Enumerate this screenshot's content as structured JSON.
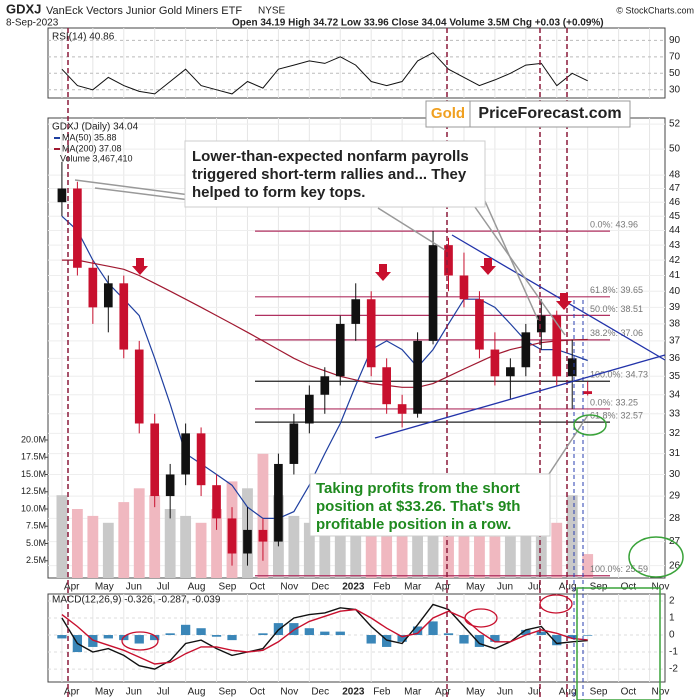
{
  "chart_data": {
    "type": "candlestick",
    "symbol": "GDXJ",
    "name": "VanEck Vectors Junior Gold Miners ETF",
    "exchange": "NYSE",
    "date": "8-Sep-2023",
    "quote": "Open 34.19 High 34.72 Low 33.96 Close 34.04 Volume 3.5M Chg +0.03 (+0.09%)",
    "source": "© StockCharts.com",
    "price_label": "GDXJ (Daily) 34.04",
    "volume_label": "Volume 3,467,410",
    "logo": [
      "Gold",
      "PriceForecast.com"
    ],
    "callout": [
      "Lower-than-expected nonfarm payrolls",
      "triggered short-term rallies and... They",
      "helped to form key tops."
    ],
    "profit_note": [
      "Taking profits from the short",
      "position at $33.26. That's 9th",
      "profitable position in a row."
    ],
    "log_scale": true,
    "up_color": "#111111",
    "down_color": "#c8102e",
    "xlim": [
      -0.45,
      19.5
    ],
    "xticks": [
      {
        "value": 0,
        "label": "Apr"
      },
      {
        "value": 1,
        "label": "May"
      },
      {
        "value": 2,
        "label": "Jun"
      },
      {
        "value": 3,
        "label": "Jul"
      },
      {
        "value": 4,
        "label": "Aug"
      },
      {
        "value": 5,
        "label": "Sep"
      },
      {
        "value": 6,
        "label": "Oct"
      },
      {
        "value": 7,
        "label": "Nov"
      },
      {
        "value": 8,
        "label": "Dec"
      },
      {
        "value": 9,
        "label": "2023"
      },
      {
        "value": 10,
        "label": "Feb"
      },
      {
        "value": 11,
        "label": "Mar"
      },
      {
        "value": 12,
        "label": "Apr"
      },
      {
        "value": 13,
        "label": "May"
      },
      {
        "value": 14,
        "label": "Jun"
      },
      {
        "value": 15,
        "label": "Jul"
      },
      {
        "value": 16,
        "label": "Aug"
      },
      {
        "value": 17,
        "label": "Sep"
      },
      {
        "value": 18,
        "label": "Oct"
      },
      {
        "value": 19,
        "label": "Nov"
      }
    ],
    "ylim": [
      25.5,
      52.5
    ],
    "yticks": [
      26,
      27,
      28,
      29,
      30,
      31,
      32,
      33,
      34,
      35,
      36,
      37,
      38,
      39,
      40,
      41,
      42,
      43,
      44,
      45,
      46,
      47,
      48,
      50,
      52
    ],
    "x": [
      0,
      0.5,
      1,
      1.5,
      2,
      2.5,
      3,
      3.5,
      4,
      4.5,
      5,
      5.5,
      6,
      6.5,
      7,
      7.5,
      8,
      8.5,
      9,
      9.5,
      10,
      10.5,
      11,
      11.5,
      12,
      12.5,
      13,
      13.5,
      14,
      14.5,
      15,
      15.5,
      16,
      16.5,
      17
    ],
    "open": [
      46,
      47,
      41.5,
      39,
      40.5,
      36.5,
      32.5,
      29,
      30,
      32,
      29.5,
      28,
      26.5,
      27.5,
      27,
      30.5,
      32.5,
      34,
      35,
      38,
      39.5,
      35.5,
      33.5,
      33,
      37,
      43,
      41,
      39.5,
      36.5,
      35,
      35.5,
      37.5,
      38.5,
      35,
      34.19
    ],
    "high": [
      49,
      47.5,
      42,
      41,
      41,
      37,
      33,
      30.5,
      32.5,
      32.3,
      30,
      28.5,
      28.5,
      28,
      31,
      33,
      34.5,
      35.5,
      38.5,
      40.5,
      40,
      36,
      34,
      37.5,
      43.96,
      43.5,
      42.5,
      40,
      37.5,
      36,
      38,
      39.5,
      38.8,
      37.06,
      34.72
    ],
    "low": [
      45,
      41,
      38,
      37.5,
      36,
      32,
      28.5,
      28,
      29.5,
      29,
      27.5,
      26,
      26,
      26.2,
      26.8,
      30,
      32,
      33,
      34.5,
      37,
      35,
      33,
      32.3,
      32.8,
      36.8,
      40,
      39,
      36,
      34.5,
      33.8,
      35,
      36.5,
      34.5,
      33.26,
      33.96
    ],
    "close": [
      47,
      41.5,
      39,
      40.5,
      36.5,
      32.5,
      29,
      30,
      32,
      29.5,
      28,
      26.5,
      27.5,
      27,
      30.5,
      32.5,
      34,
      35,
      38,
      39.5,
      35.5,
      33.5,
      33,
      37,
      43,
      41,
      39.5,
      36.5,
      35,
      35.5,
      37.5,
      38.5,
      35,
      36,
      34.04
    ],
    "volume": [
      12,
      10,
      9,
      8,
      11,
      13,
      12,
      10,
      9,
      8,
      10,
      14,
      13,
      18,
      12,
      9,
      8,
      7,
      9,
      8,
      8,
      9,
      10,
      8,
      12,
      9,
      8,
      7,
      6,
      6,
      7,
      6,
      8,
      12,
      3.46741
    ],
    "volume_ylim": [
      0,
      20
    ],
    "volume_ticks": [
      {
        "value": 2.5,
        "label": "2.5M"
      },
      {
        "value": 5,
        "label": "5.0M"
      },
      {
        "value": 7.5,
        "label": "7.5M"
      },
      {
        "value": 10,
        "label": "10.0M"
      },
      {
        "value": 12.5,
        "label": "12.5M"
      },
      {
        "value": 15,
        "label": "15.0M"
      },
      {
        "value": 17.5,
        "label": "17.5M"
      },
      {
        "value": 20,
        "label": "20.0M"
      }
    ],
    "series": [
      {
        "name": "MA(50) 35.88",
        "color": "#1f3fa0",
        "values": [
          45,
          44,
          42,
          40.5,
          39.5,
          38.5,
          36,
          33.5,
          31,
          30.5,
          30,
          29.5,
          28.5,
          28,
          28,
          28.3,
          29.5,
          31,
          32.5,
          34.5,
          36.5,
          37,
          36.5,
          35.5,
          36.5,
          38,
          39.5,
          39.5,
          39,
          38,
          37,
          36.5,
          36.5,
          36.2,
          35.88
        ]
      },
      {
        "name": "MA(200) 37.08",
        "color": "#a01830",
        "values": [
          42,
          42,
          41.8,
          41.6,
          41.4,
          41,
          40.5,
          40,
          39.5,
          39,
          38.5,
          38,
          37.5,
          37,
          36.5,
          36,
          35.6,
          35.3,
          35,
          34.8,
          34.6,
          34.5,
          34.4,
          34.4,
          34.6,
          35,
          35.4,
          35.8,
          36.2,
          36.5,
          36.7,
          36.9,
          37,
          37.05,
          37.08
        ]
      }
    ],
    "levels": [
      {
        "value": 43.96,
        "label": "0.0%: 43.96",
        "color": "#b03060"
      },
      {
        "value": 39.65,
        "label": "61.8%: 39.65",
        "color": "#b03060"
      },
      {
        "value": 38.51,
        "label": "50.0%: 38.51",
        "color": "#b03060"
      },
      {
        "value": 37.06,
        "label": "38.2%: 37.06",
        "color": "#b03060"
      },
      {
        "value": 34.73,
        "label": "100.0%: 34.73",
        "color": "#222222"
      },
      {
        "value": 33.25,
        "label": "0.0%: 33.25",
        "color": "#b03060"
      },
      {
        "value": 32.57,
        "label": "61.8%: 32.57",
        "color": "#222222"
      },
      {
        "value": 25.59,
        "label": "100.0%: 25.59",
        "color": "#b03060"
      }
    ],
    "rsi": {
      "title": "RSI(14) 40.86",
      "color": "#111111",
      "ylim": [
        20,
        105
      ],
      "yticks": [
        30,
        50,
        70,
        90
      ],
      "values": [
        55,
        35,
        30,
        45,
        35,
        28,
        25,
        40,
        55,
        35,
        30,
        25,
        40,
        32,
        55,
        60,
        65,
        62,
        70,
        60,
        40,
        35,
        40,
        65,
        75,
        55,
        45,
        35,
        42,
        50,
        60,
        62,
        35,
        50,
        40.86
      ]
    },
    "macd": {
      "title": "MACD(12,26,9) -0.326, -0.287, -0.039",
      "ylim": [
        -2.76,
        2.41
      ],
      "yticks": [
        -2,
        -1,
        0,
        1,
        2
      ],
      "series": [
        {
          "color": "#111111",
          "values": [
            1,
            -0.5,
            -1,
            -0.8,
            -1.2,
            -1.8,
            -2,
            -1.5,
            -0.5,
            -0.3,
            -0.8,
            -1.2,
            -1,
            -0.8,
            0.3,
            1,
            1.2,
            1.3,
            1.6,
            1.5,
            0.5,
            -0.3,
            -0.5,
            0.6,
            1.8,
            1.5,
            0.5,
            -0.5,
            -0.8,
            -0.4,
            0.3,
            0.5,
            -0.5,
            -0.4,
            -0.326
          ]
        },
        {
          "color": "#c8102e",
          "values": [
            1.2,
            0.5,
            -0.3,
            -0.6,
            -0.9,
            -1.3,
            -1.7,
            -1.6,
            -1.1,
            -0.7,
            -0.7,
            -0.9,
            -1,
            -0.9,
            -0.4,
            0.3,
            0.8,
            1.1,
            1.4,
            1.5,
            1,
            0.4,
            -0.1,
            0.1,
            1,
            1.4,
            1,
            0.2,
            -0.4,
            -0.4,
            0,
            0.3,
            0.1,
            -0.2,
            -0.287
          ]
        }
      ],
      "histogram": {
        "color": "#3a86b8",
        "values": [
          -0.2,
          -1,
          -0.7,
          -0.2,
          -0.3,
          -0.5,
          -0.3,
          0.1,
          0.6,
          0.4,
          -0.1,
          -0.3,
          0,
          0.1,
          0.7,
          0.7,
          0.4,
          0.2,
          0.2,
          0,
          -0.5,
          -0.7,
          -0.4,
          0.5,
          0.8,
          0.1,
          -0.5,
          -0.7,
          -0.4,
          0,
          0.3,
          0.2,
          -0.6,
          -0.2,
          -0.039
        ]
      }
    }
  }
}
